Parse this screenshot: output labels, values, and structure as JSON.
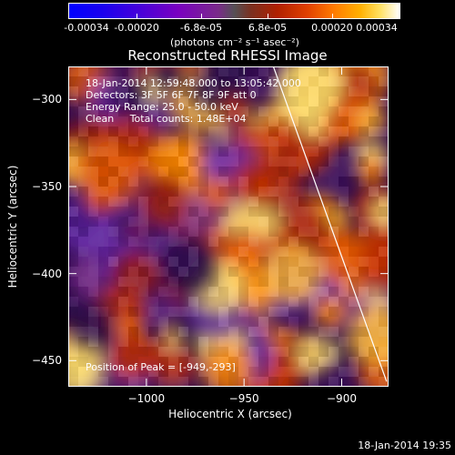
{
  "colorbar": {
    "tick_labels": [
      "-0.00034",
      "-0.00020",
      "-6.8e-05",
      "6.8e-05",
      "0.00020",
      "0.00034"
    ],
    "tick_values": [
      -0.00034,
      -0.0002,
      -6.8e-05,
      6.8e-05,
      0.0002,
      0.00034
    ],
    "range": [
      -0.00034,
      0.00034
    ],
    "units": "(photons cm⁻² s⁻¹ asec⁻²)"
  },
  "title": "Reconstructed RHESSI Image",
  "overlay": {
    "time_range": "18-Jan-2014 12:59:48.000 to 13:05:42.000",
    "detectors": "Detectors: 3F 5F 6F 7F 8F 9F att 0",
    "energy_range": "Energy Range: 25.0 - 50.0 keV",
    "method_counts": "Clean     Total counts: 1.48E+04",
    "peak_position": "Position of Peak = [-949,-293]"
  },
  "axes": {
    "xlabel": "Heliocentric X (arcsec)",
    "ylabel": "Heliocentric Y (arcsec)",
    "xlim": [
      -1040,
      -876
    ],
    "ylim": [
      -465,
      -281
    ],
    "xticks": [
      {
        "value": -1000,
        "label": "−1000"
      },
      {
        "value": -950,
        "label": "−950"
      },
      {
        "value": -900,
        "label": "−900"
      }
    ],
    "yticks": [
      {
        "value": -300,
        "label": "−300"
      },
      {
        "value": -350,
        "label": "−350"
      },
      {
        "value": -400,
        "label": "−400"
      },
      {
        "value": -450,
        "label": "−450"
      }
    ]
  },
  "limb_line": {
    "x1": -935,
    "y1": -281,
    "x2": -877,
    "y2": -462
  },
  "footer_timestamp": "18-Jan-2014 19:35",
  "colors": {
    "background": "#000000",
    "text": "#ffffff",
    "limb": "#ffffff"
  }
}
